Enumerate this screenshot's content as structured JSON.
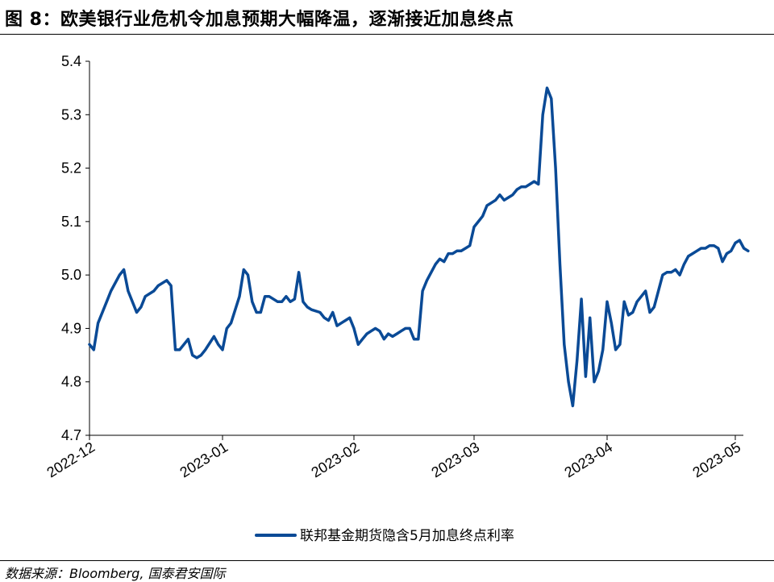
{
  "title": "图 8：欧美银行业危机令加息预期大幅降温，逐渐接近加息终点",
  "source": "数据来源：Bloomberg, 国泰君安国际",
  "chart_data": {
    "type": "line",
    "title": "",
    "xlabel": "",
    "ylabel": "",
    "ylim": [
      4.7,
      5.4
    ],
    "y_ticks": [
      "4.7",
      "4.8",
      "4.9",
      "5.0",
      "5.1",
      "5.2",
      "5.3",
      "5.4"
    ],
    "x_ticks": [
      "2022-12",
      "2023-01",
      "2023-02",
      "2023-03",
      "2023-04",
      "2023-05"
    ],
    "grid": false,
    "legend_position": "bottom",
    "line_color": "#0a4a96",
    "series": [
      {
        "name": "联邦基金期货隐含5月加息终点利率",
        "points": [
          [
            "2022-12-01",
            4.87
          ],
          [
            "2022-12-02",
            4.86
          ],
          [
            "2022-12-03",
            4.91
          ],
          [
            "2022-12-05",
            4.95
          ],
          [
            "2022-12-06",
            4.97
          ],
          [
            "2022-12-08",
            5.0
          ],
          [
            "2022-12-09",
            5.01
          ],
          [
            "2022-12-10",
            4.97
          ],
          [
            "2022-12-12",
            4.93
          ],
          [
            "2022-12-13",
            4.94
          ],
          [
            "2022-12-14",
            4.96
          ],
          [
            "2022-12-16",
            4.97
          ],
          [
            "2022-12-17",
            4.98
          ],
          [
            "2022-12-19",
            4.99
          ],
          [
            "2022-12-20",
            4.98
          ],
          [
            "2022-12-21",
            4.86
          ],
          [
            "2022-12-22",
            4.86
          ],
          [
            "2022-12-23",
            4.87
          ],
          [
            "2022-12-24",
            4.88
          ],
          [
            "2022-12-25",
            4.85
          ],
          [
            "2022-12-26",
            4.845
          ],
          [
            "2022-12-27",
            4.85
          ],
          [
            "2022-12-28",
            4.86
          ],
          [
            "2022-12-30",
            4.885
          ],
          [
            "2022-12-31",
            4.87
          ],
          [
            "2023-01-01",
            4.86
          ],
          [
            "2023-01-02",
            4.9
          ],
          [
            "2023-01-03",
            4.91
          ],
          [
            "2023-01-05",
            4.96
          ],
          [
            "2023-01-06",
            5.01
          ],
          [
            "2023-01-07",
            5.0
          ],
          [
            "2023-01-08",
            4.95
          ],
          [
            "2023-01-09",
            4.93
          ],
          [
            "2023-01-10",
            4.93
          ],
          [
            "2023-01-11",
            4.96
          ],
          [
            "2023-01-12",
            4.96
          ],
          [
            "2023-01-14",
            4.95
          ],
          [
            "2023-01-15",
            4.95
          ],
          [
            "2023-01-16",
            4.96
          ],
          [
            "2023-01-17",
            4.95
          ],
          [
            "2023-01-18",
            4.955
          ],
          [
            "2023-01-19",
            5.005
          ],
          [
            "2023-01-20",
            4.95
          ],
          [
            "2023-01-21",
            4.94
          ],
          [
            "2023-01-22",
            4.935
          ],
          [
            "2023-01-24",
            4.93
          ],
          [
            "2023-01-25",
            4.92
          ],
          [
            "2023-01-26",
            4.915
          ],
          [
            "2023-01-27",
            4.93
          ],
          [
            "2023-01-28",
            4.905
          ],
          [
            "2023-01-29",
            4.91
          ],
          [
            "2023-01-30",
            4.915
          ],
          [
            "2023-01-31",
            4.92
          ],
          [
            "2023-02-01",
            4.9
          ],
          [
            "2023-02-02",
            4.87
          ],
          [
            "2023-02-03",
            4.88
          ],
          [
            "2023-02-04",
            4.89
          ],
          [
            "2023-02-05",
            4.895
          ],
          [
            "2023-02-06",
            4.9
          ],
          [
            "2023-02-07",
            4.895
          ],
          [
            "2023-02-08",
            4.88
          ],
          [
            "2023-02-09",
            4.89
          ],
          [
            "2023-02-10",
            4.885
          ],
          [
            "2023-02-11",
            4.89
          ],
          [
            "2023-02-12",
            4.895
          ],
          [
            "2023-02-13",
            4.9
          ],
          [
            "2023-02-14",
            4.9
          ],
          [
            "2023-02-15",
            4.88
          ],
          [
            "2023-02-16",
            4.88
          ],
          [
            "2023-02-17",
            4.97
          ],
          [
            "2023-02-18",
            4.99
          ],
          [
            "2023-02-20",
            5.02
          ],
          [
            "2023-02-21",
            5.03
          ],
          [
            "2023-02-22",
            5.025
          ],
          [
            "2023-02-23",
            5.04
          ],
          [
            "2023-02-24",
            5.04
          ],
          [
            "2023-02-25",
            5.045
          ],
          [
            "2023-02-26",
            5.045
          ],
          [
            "2023-02-27",
            5.05
          ],
          [
            "2023-02-28",
            5.055
          ],
          [
            "2023-03-01",
            5.09
          ],
          [
            "2023-03-02",
            5.1
          ],
          [
            "2023-03-03",
            5.11
          ],
          [
            "2023-03-04",
            5.13
          ],
          [
            "2023-03-05",
            5.135
          ],
          [
            "2023-03-06",
            5.14
          ],
          [
            "2023-03-07",
            5.15
          ],
          [
            "2023-03-08",
            5.14
          ],
          [
            "2023-03-09",
            5.145
          ],
          [
            "2023-03-10",
            5.15
          ],
          [
            "2023-03-11",
            5.16
          ],
          [
            "2023-03-12",
            5.165
          ],
          [
            "2023-03-13",
            5.165
          ],
          [
            "2023-03-14",
            5.17
          ],
          [
            "2023-03-15",
            5.175
          ],
          [
            "2023-03-16",
            5.17
          ],
          [
            "2023-03-17",
            5.3
          ],
          [
            "2023-03-18",
            5.35
          ],
          [
            "2023-03-19",
            5.33
          ],
          [
            "2023-03-20",
            5.2
          ],
          [
            "2023-03-21",
            5.02
          ],
          [
            "2023-03-22",
            4.87
          ],
          [
            "2023-03-23",
            4.8
          ],
          [
            "2023-03-24",
            4.755
          ],
          [
            "2023-03-25",
            4.84
          ],
          [
            "2023-03-26",
            4.955
          ],
          [
            "2023-03-27",
            4.81
          ],
          [
            "2023-03-28",
            4.92
          ],
          [
            "2023-03-29",
            4.8
          ],
          [
            "2023-03-30",
            4.82
          ],
          [
            "2023-03-31",
            4.86
          ],
          [
            "2023-04-01",
            4.95
          ],
          [
            "2023-04-02",
            4.91
          ],
          [
            "2023-04-03",
            4.86
          ],
          [
            "2023-04-04",
            4.87
          ],
          [
            "2023-04-05",
            4.95
          ],
          [
            "2023-04-06",
            4.925
          ],
          [
            "2023-04-07",
            4.93
          ],
          [
            "2023-04-08",
            4.95
          ],
          [
            "2023-04-09",
            4.96
          ],
          [
            "2023-04-10",
            4.97
          ],
          [
            "2023-04-11",
            4.93
          ],
          [
            "2023-04-12",
            4.94
          ],
          [
            "2023-04-13",
            4.97
          ],
          [
            "2023-04-14",
            5.0
          ],
          [
            "2023-04-15",
            5.005
          ],
          [
            "2023-04-16",
            5.005
          ],
          [
            "2023-04-17",
            5.01
          ],
          [
            "2023-04-18",
            5.0
          ],
          [
            "2023-04-19",
            5.02
          ],
          [
            "2023-04-20",
            5.035
          ],
          [
            "2023-04-21",
            5.04
          ],
          [
            "2023-04-22",
            5.045
          ],
          [
            "2023-04-23",
            5.05
          ],
          [
            "2023-04-24",
            5.05
          ],
          [
            "2023-04-25",
            5.055
          ],
          [
            "2023-04-26",
            5.055
          ],
          [
            "2023-04-27",
            5.05
          ],
          [
            "2023-04-28",
            5.025
          ],
          [
            "2023-04-29",
            5.04
          ],
          [
            "2023-04-30",
            5.045
          ],
          [
            "2023-05-01",
            5.06
          ],
          [
            "2023-05-02",
            5.065
          ],
          [
            "2023-05-03",
            5.05
          ],
          [
            "2023-05-04",
            5.045
          ]
        ]
      }
    ]
  }
}
